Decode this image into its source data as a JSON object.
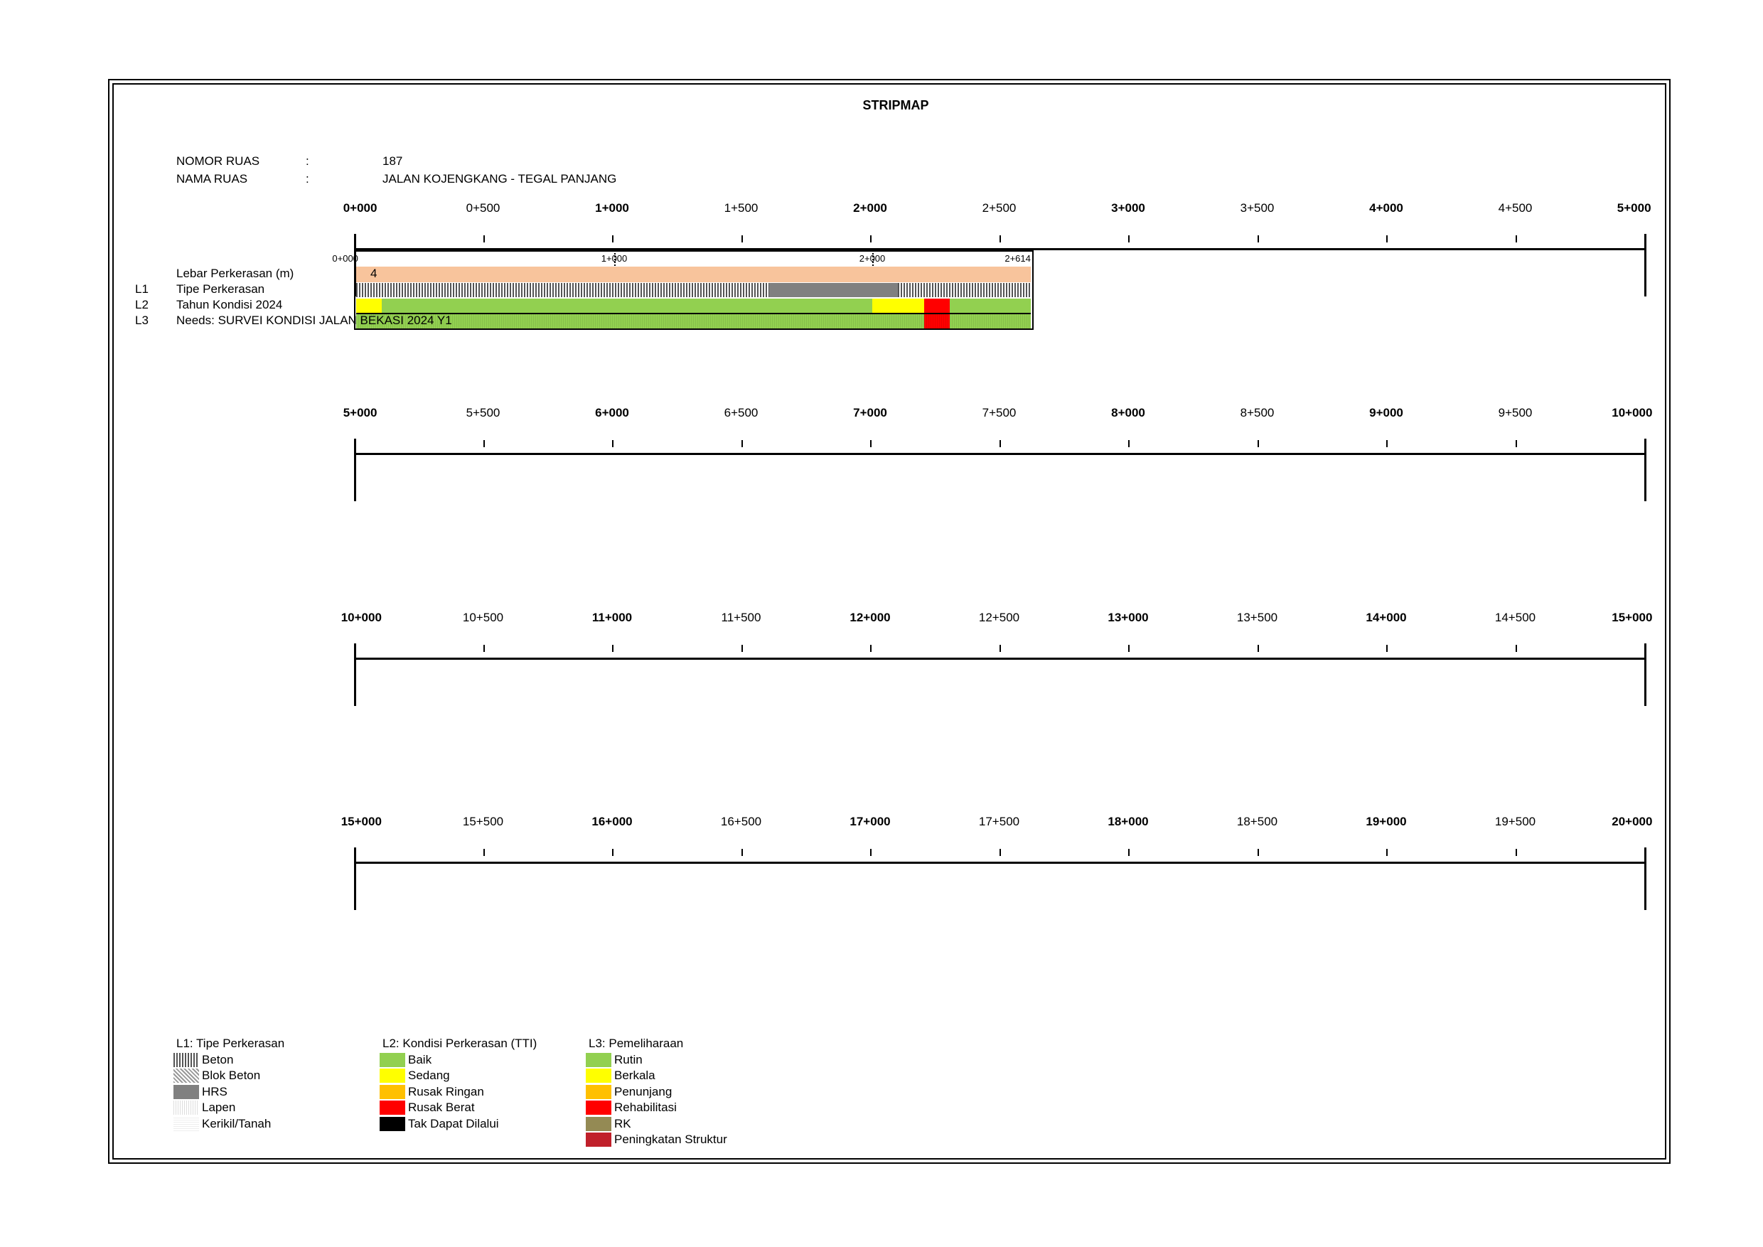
{
  "title": "STRIPMAP",
  "info": {
    "nomor_label": "NOMOR RUAS",
    "nomor_sep": ":",
    "nomor_value": "187",
    "nama_label": "NAMA RUAS",
    "nama_sep": ":",
    "nama_value": "JALAN KOJENGKANG - TEGAL PANJANG"
  },
  "rows": [
    {
      "km": [
        "0+000",
        "0+500",
        "1+000",
        "1+500",
        "2+000",
        "2+500",
        "3+000",
        "3+500",
        "4+000",
        "4+500",
        "5+000"
      ]
    },
    {
      "km": [
        "5+000",
        "5+500",
        "6+000",
        "6+500",
        "7+000",
        "7+500",
        "8+000",
        "8+500",
        "9+000",
        "9+500",
        "10+000"
      ]
    },
    {
      "km": [
        "10+000",
        "10+500",
        "11+000",
        "11+500",
        "12+000",
        "12+500",
        "13+000",
        "13+500",
        "14+000",
        "14+500",
        "15+000"
      ]
    },
    {
      "km": [
        "15+000",
        "15+500",
        "16+000",
        "16+500",
        "17+000",
        "17+500",
        "18+000",
        "18+500",
        "19+000",
        "19+500",
        "20+000"
      ]
    }
  ],
  "strip": {
    "road_length_km": 2.614,
    "minor_labels": [
      "0+000",
      "1+000",
      "2+000",
      "2+614"
    ],
    "layer_labels": {
      "lebar": "Lebar Perkerasan (m)",
      "l1_code": "L1",
      "l1": "Tipe Perkerasan",
      "l2_code": "L2",
      "l2": "Tahun Kondisi 2024",
      "l3_code": "L3",
      "l3": "Needs: SURVEI KONDISI JALAN BEKASI 2024 Y1"
    },
    "lebar_value": "4",
    "lebar_color": "#F8C49C",
    "l1_segments": [
      {
        "from": 0.0,
        "to": 1.6,
        "type": "beton"
      },
      {
        "from": 1.6,
        "to": 2.1,
        "type": "hrs"
      },
      {
        "from": 2.1,
        "to": 2.614,
        "type": "beton"
      }
    ],
    "l2_segments": [
      {
        "from": 0.0,
        "to": 0.1,
        "color": "#FFFF00"
      },
      {
        "from": 0.1,
        "to": 2.0,
        "color": "#92D050"
      },
      {
        "from": 2.0,
        "to": 2.2,
        "color": "#FFFF00"
      },
      {
        "from": 2.2,
        "to": 2.3,
        "color": "#FF0000"
      },
      {
        "from": 2.3,
        "to": 2.614,
        "color": "#92D050"
      }
    ],
    "l3_segments": [
      {
        "from": 0.0,
        "to": 2.2,
        "color": "#92D050"
      },
      {
        "from": 2.2,
        "to": 2.3,
        "color": "#FF0000"
      },
      {
        "from": 2.3,
        "to": 2.614,
        "color": "#92D050"
      }
    ]
  },
  "legend": {
    "l1": {
      "title": "L1: Tipe Perkerasan",
      "items": [
        {
          "label": "Beton",
          "pattern": "beton"
        },
        {
          "label": "Blok Beton",
          "pattern": "blok"
        },
        {
          "label": "HRS",
          "pattern": "hrs"
        },
        {
          "label": "Lapen",
          "pattern": "lapen"
        },
        {
          "label": "Kerikil/Tanah",
          "pattern": "kerikil"
        }
      ]
    },
    "l2": {
      "title": "L2: Kondisi Perkerasan (TTI)",
      "items": [
        {
          "label": "Baik",
          "color": "#92D050"
        },
        {
          "label": "Sedang",
          "color": "#FFFF00"
        },
        {
          "label": "Rusak Ringan",
          "color": "#FFC000"
        },
        {
          "label": "Rusak Berat",
          "color": "#FF0000"
        },
        {
          "label": "Tak Dapat Dilalui",
          "color": "#000000"
        }
      ]
    },
    "l3": {
      "title": "L3: Pemeliharaan",
      "items": [
        {
          "label": "Rutin",
          "color": "#92D050"
        },
        {
          "label": "Berkala",
          "color": "#FFFF00"
        },
        {
          "label": "Penunjang",
          "color": "#FFC000"
        },
        {
          "label": "Rehabilitasi",
          "color": "#FF0000"
        },
        {
          "label": "RK",
          "color": "#948A54"
        },
        {
          "label": "Peningkatan Struktur",
          "color": "#C0202A"
        }
      ]
    }
  }
}
